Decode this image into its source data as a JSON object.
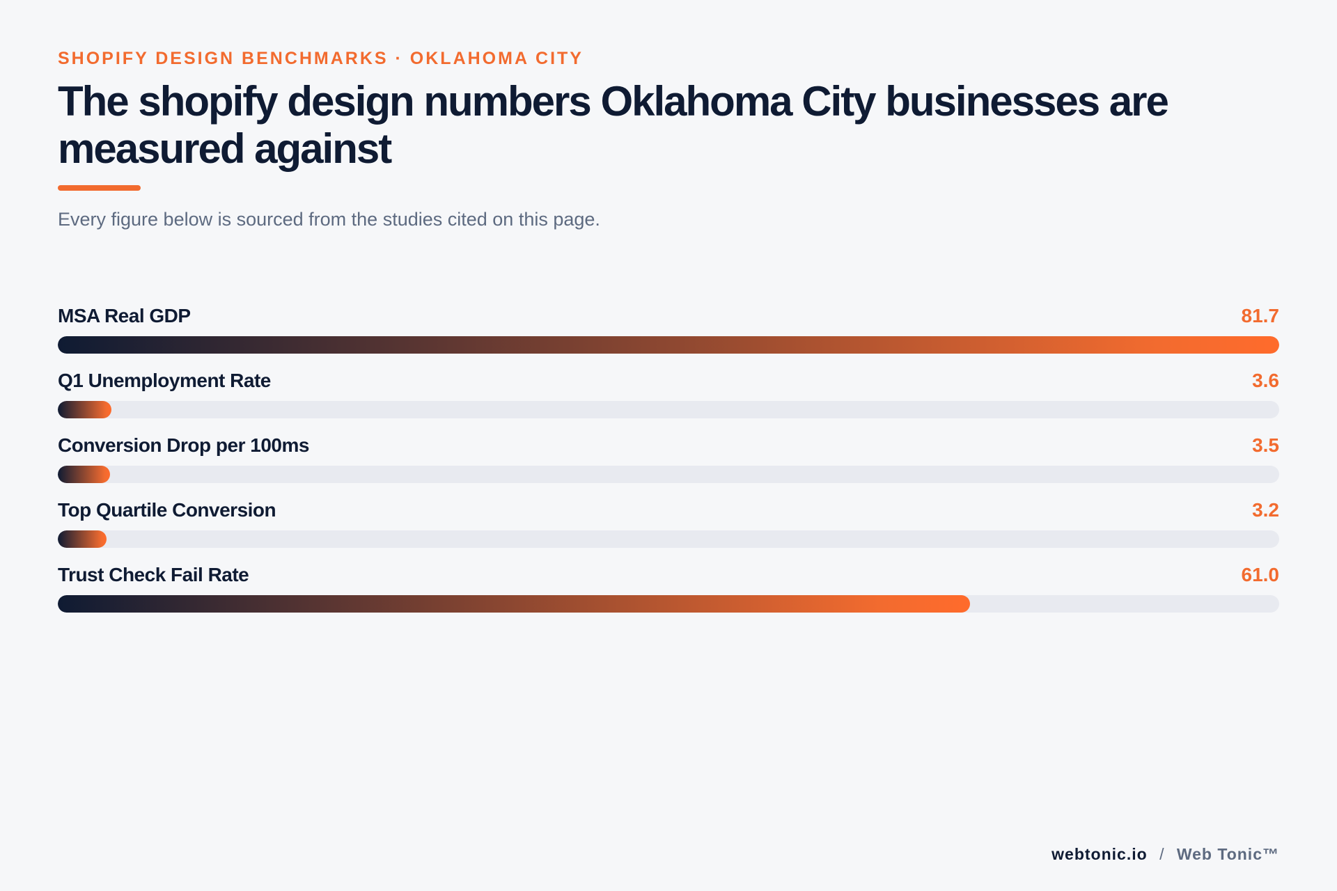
{
  "header": {
    "eyebrow": "SHOPIFY DESIGN BENCHMARKS · OKLAHOMA CITY",
    "title": "The shopify design numbers Oklahoma City businesses are measured against",
    "subtitle": "Every figure below is sourced from the studies cited on this page."
  },
  "chart_data": {
    "type": "bar",
    "orientation": "horizontal",
    "categories": [
      "MSA Real GDP",
      "Q1 Unemployment Rate",
      "Conversion Drop per 100ms",
      "Top Quartile Conversion",
      "Trust Check Fail Rate"
    ],
    "values": [
      81.7,
      3.6,
      3.5,
      3.2,
      61.0
    ],
    "value_labels": [
      "81.7",
      "3.6",
      "3.5",
      "3.2",
      "61.0"
    ],
    "xlim": [
      0,
      81.7
    ],
    "grid": false,
    "colors": {
      "bar_start": "#0f1b33",
      "bar_end": "#ff6b2c",
      "track": "#e8eaf0",
      "value_text": "#f26b2f"
    }
  },
  "footer": {
    "domain": "webtonic.io",
    "separator": "/",
    "brand": "Web Tonic™"
  }
}
